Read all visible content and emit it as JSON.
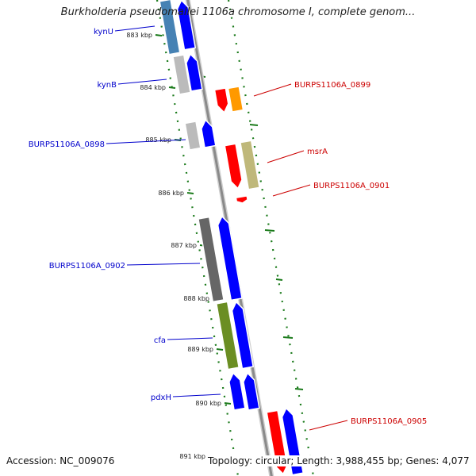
{
  "title": "Burkholderia pseudomallei 1106a chromosome I, complete genom...",
  "accession": "Accession: NC_009076",
  "topology": "Topology: circular; Length: 3,988,455 bp; Genes: 4,077",
  "colors": {
    "backbone": "#888888",
    "gc_dots": "#1a7a1a",
    "left_label": "#0000cc",
    "right_label": "#cc0000",
    "tick_text": "#222222",
    "blue": "#0000ff",
    "red": "#ff0000",
    "orange": "#ff9900",
    "grey": "#bbbbbb",
    "dark_grey": "#666666",
    "tan": "#bfb87a",
    "olive": "#6b8e23",
    "steel": "#4682b4"
  },
  "ticks": [
    "883 kbp",
    "884 kbp",
    "885 kbp",
    "886 kbp",
    "887 kbp",
    "888 kbp",
    "889 kbp",
    "890 kbp",
    "891 kbp"
  ],
  "left_labels": [
    "kynU",
    "kynB",
    "BURPS1106A_0898",
    "BURPS1106A_0902",
    "cfa",
    "pdxH"
  ],
  "right_labels": [
    "BURPS1106A_0899",
    "msrA",
    "BURPS1106A_0901",
    "BURPS1106A_0905"
  ]
}
